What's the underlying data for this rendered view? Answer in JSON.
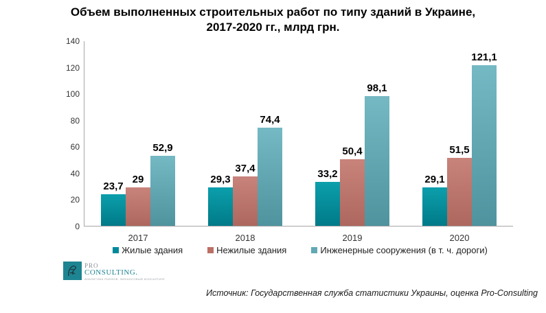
{
  "header": {
    "title_lines": [
      "Объем выполненных строительных работ по типу зданий в Украине,",
      "2017-2020 гг., млрд грн."
    ]
  },
  "chart_data": {
    "type": "bar",
    "title": "Объем выполненных строительных работ по типу зданий в Украине, 2017-2020 гг., млрд грн.",
    "xlabel": "",
    "ylabel": "",
    "categories": [
      "2017",
      "2018",
      "2019",
      "2020"
    ],
    "series": [
      {
        "name": "Жилые здания",
        "values": [
          23.7,
          29.3,
          33.2,
          29.1
        ],
        "labels": [
          "23,7",
          "29,3",
          "33,2",
          "29,1"
        ],
        "color_top": "#0c9fac",
        "color_bottom": "#007a88",
        "legend_color": "#00899b"
      },
      {
        "name": "Нежилые здания",
        "values": [
          29,
          37.4,
          50.4,
          51.5
        ],
        "labels": [
          "29",
          "37,4",
          "50,4",
          "51,5"
        ],
        "color_top": "#c8837b",
        "color_bottom": "#ad675e",
        "legend_color": "#bc6f66"
      },
      {
        "name": "Инженерные сооружения (в т. ч. дороги)",
        "values": [
          52.9,
          74.4,
          98.1,
          121.1
        ],
        "labels": [
          "52,9",
          "74,4",
          "98,1",
          "121,1"
        ],
        "color_top": "#74b9c3",
        "color_bottom": "#4f939e",
        "legend_color": "#62a9b5"
      }
    ],
    "ylim": [
      0,
      140
    ],
    "yticks": [
      0,
      20,
      40,
      60,
      80,
      100,
      120,
      140
    ],
    "grid": false,
    "legend_position": "bottom",
    "axis_color": "#a6a6a6"
  },
  "footer": {
    "logo": {
      "line1": "PRO",
      "line2": "CONSULTING.",
      "tagline": "АНАЛИТИКА РЫНКОВ. ФИНАНСОВЫЙ КОНСАЛТИНГ"
    },
    "source": "Источник: Государственная служба статистики Украины, оценка Pro-Consulting"
  }
}
